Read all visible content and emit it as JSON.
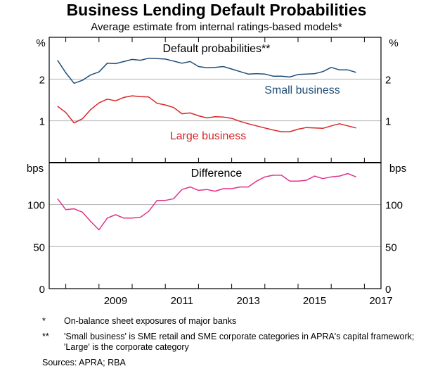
{
  "title": "Business Lending Default Probabilities",
  "subtitle": "Average estimate from internal ratings-based models*",
  "chart_data": [
    {
      "type": "line",
      "panel_title": "Default probabilities**",
      "unit": "%",
      "ylim": [
        0,
        3
      ],
      "yticks": [
        1,
        2
      ],
      "ytick_labels": [
        "1",
        "2"
      ],
      "x_start": 2007.75,
      "x_step": 0.25,
      "series": [
        {
          "name": "Small business",
          "color": "#1f4e79",
          "values": [
            2.45,
            2.15,
            1.9,
            1.97,
            2.1,
            2.17,
            2.38,
            2.37,
            2.42,
            2.47,
            2.45,
            2.5,
            2.49,
            2.48,
            2.43,
            2.38,
            2.42,
            2.3,
            2.27,
            2.28,
            2.3,
            2.24,
            2.18,
            2.12,
            2.13,
            2.12,
            2.07,
            2.07,
            2.05,
            2.11,
            2.12,
            2.13,
            2.18,
            2.28,
            2.22,
            2.22,
            2.16
          ]
        },
        {
          "name": "Large business",
          "color": "#d62728",
          "values": [
            1.35,
            1.2,
            0.95,
            1.05,
            1.27,
            1.43,
            1.52,
            1.48,
            1.56,
            1.6,
            1.58,
            1.57,
            1.42,
            1.38,
            1.32,
            1.17,
            1.19,
            1.12,
            1.07,
            1.1,
            1.09,
            1.06,
            0.99,
            0.93,
            0.88,
            0.83,
            0.78,
            0.74,
            0.74,
            0.8,
            0.84,
            0.83,
            0.82,
            0.88,
            0.93,
            0.88,
            0.83
          ]
        }
      ]
    },
    {
      "type": "line",
      "panel_title": "Difference",
      "unit": "bps",
      "ylim": [
        0,
        150
      ],
      "yticks": [
        0,
        50,
        100
      ],
      "ytick_labels": [
        "0",
        "50",
        "100"
      ],
      "x_start": 2007.75,
      "x_step": 0.25,
      "series": [
        {
          "name": "Difference",
          "color": "#e0338a",
          "values": [
            107,
            94,
            95,
            91,
            80,
            70,
            84,
            88,
            84,
            84,
            85,
            92,
            105,
            105,
            107,
            118,
            121,
            117,
            118,
            116,
            119,
            119,
            121,
            121,
            128,
            133,
            135,
            135,
            128,
            128,
            129,
            134,
            131,
            133,
            134,
            137,
            133
          ]
        }
      ]
    }
  ],
  "x_axis": {
    "tick_labels": [
      "2009",
      "2011",
      "2013",
      "2015",
      "2017"
    ],
    "range": [
      2007.5,
      2017.5
    ]
  },
  "series_labels": {
    "small": "Small business",
    "large": "Large business"
  },
  "notes": [
    {
      "marker": "*",
      "text": "On-balance sheet exposures of major banks"
    },
    {
      "marker": "**",
      "text": "'Small business' is SME retail and SME corporate categories in APRA's capital framework; 'Large' is the corporate category"
    }
  ],
  "sources": "Sources:   APRA; RBA"
}
